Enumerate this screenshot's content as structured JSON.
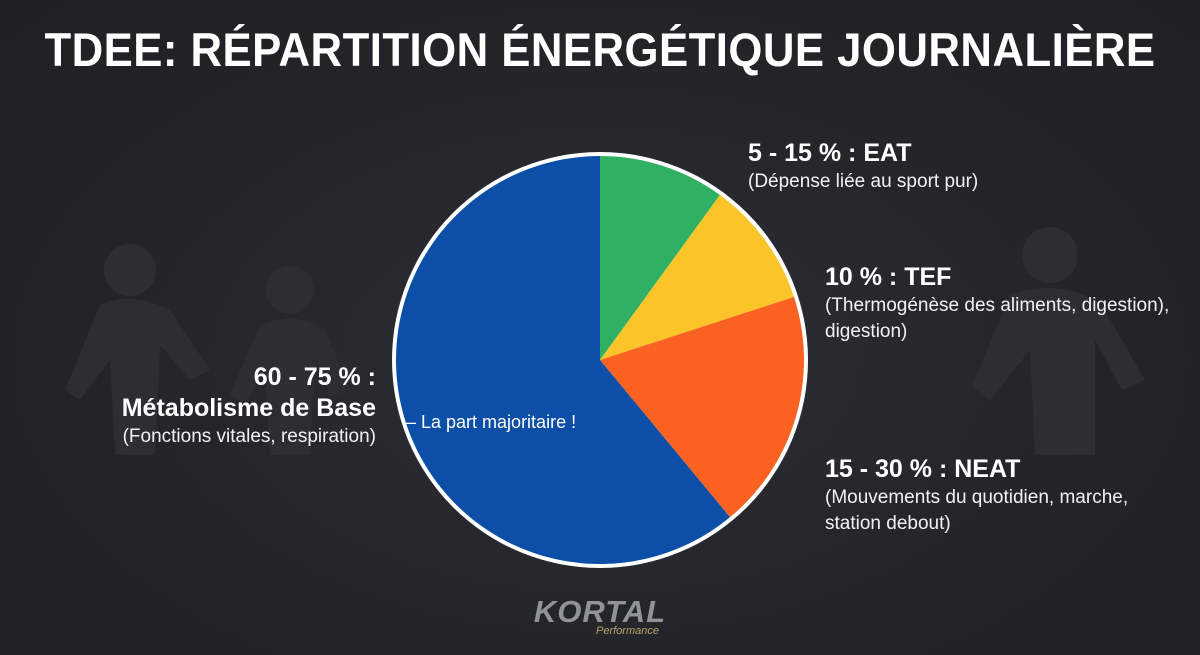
{
  "title": "TDEE: RÉPARTITION ÉNERGÉTIQUE JOURNALIÈRE",
  "annotation": "– La part majoritaire !",
  "logo": {
    "name": "KORTAL",
    "tagline": "Performance"
  },
  "colors": {
    "background": "#24262b",
    "base": "#0d4ea6",
    "eat": "#2fb062",
    "tef": "#fbc52a",
    "neat": "#fb6221",
    "outline": "#ffffff"
  },
  "chart_data": {
    "type": "pie",
    "title": "TDEE: RÉPARTITION ÉNERGÉTIQUE JOURNALIÈRE",
    "start_angle_deg": 0,
    "slices": [
      {
        "key": "eat",
        "value": 10,
        "color": "#2fb062",
        "label": "5 - 15 % : EAT",
        "description": "(Dépense liée au sport pur)"
      },
      {
        "key": "tef",
        "value": 10,
        "color": "#fbc52a",
        "label": "10 % : TEF",
        "description": "(Thermogénèse des aliments, digestion), digestion)"
      },
      {
        "key": "neat",
        "value": 19,
        "color": "#fb6221",
        "label": "15 - 30 % : NEAT",
        "description": "(Mouvements du quotidien, marche, station debout)"
      },
      {
        "key": "base",
        "value": 61,
        "color": "#0d4ea6",
        "label": "60 - 75 % :",
        "label_line2": "Métabolisme de Base",
        "description": "(Fonctions vitales, respiration)"
      }
    ]
  }
}
